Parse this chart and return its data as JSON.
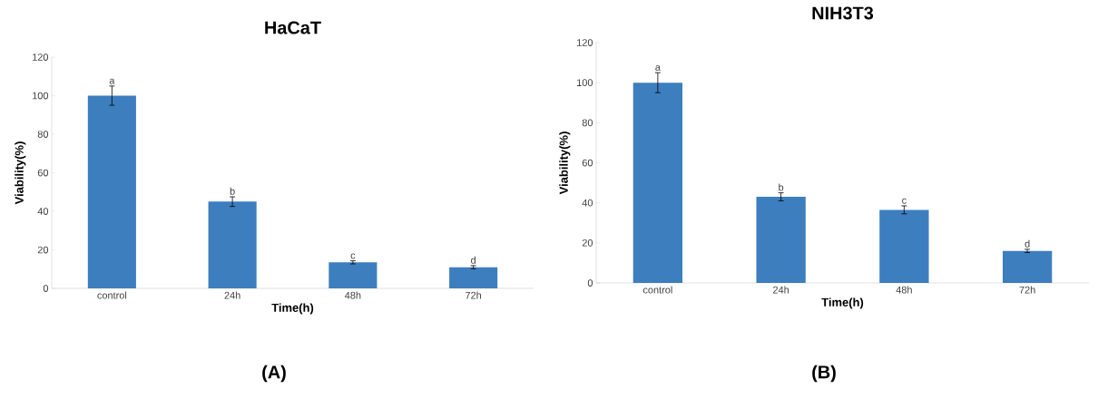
{
  "chart_data": [
    {
      "type": "bar",
      "title": "HaCaT",
      "xlabel": "Time(h)",
      "ylabel": "Viability(%)",
      "categories": [
        "control",
        "24h",
        "48h",
        "72h"
      ],
      "values": [
        100,
        45,
        13.5,
        11
      ],
      "errors": [
        5,
        2.5,
        0.8,
        0.8
      ],
      "color": "#3d7ebf",
      "ylim": [
        0,
        120
      ],
      "yticks": [
        0,
        20,
        40,
        60,
        80,
        100,
        120
      ],
      "annotations": [
        {
          "text": "a",
          "x": "control",
          "y": 105
        },
        {
          "text": "b",
          "x": "24h",
          "y": 47.5
        },
        {
          "text": "c",
          "x": "48h",
          "y": 14.3
        },
        {
          "text": "d",
          "x": "72h",
          "y": 11.8
        },
        "(A)"
      ]
    },
    {
      "type": "bar",
      "title": "NIH3T3",
      "xlabel": "Time(h)",
      "ylabel": "Viability(%)",
      "categories": [
        "control",
        "24h",
        "48h",
        "72h"
      ],
      "values": [
        100,
        43,
        36.5,
        16
      ],
      "errors": [
        5,
        2,
        2,
        0.8
      ],
      "color": "#3d7ebf",
      "ylim": [
        0,
        120
      ],
      "yticks": [
        0,
        20,
        40,
        60,
        80,
        100,
        120
      ],
      "annotations": [
        {
          "text": "a",
          "x": "control",
          "y": 105
        },
        {
          "text": "b",
          "x": "24h",
          "y": 45
        },
        {
          "text": "c",
          "x": "48h",
          "y": 38.5
        },
        {
          "text": "d",
          "x": "72h",
          "y": 16.8
        },
        "(B)"
      ]
    }
  ]
}
